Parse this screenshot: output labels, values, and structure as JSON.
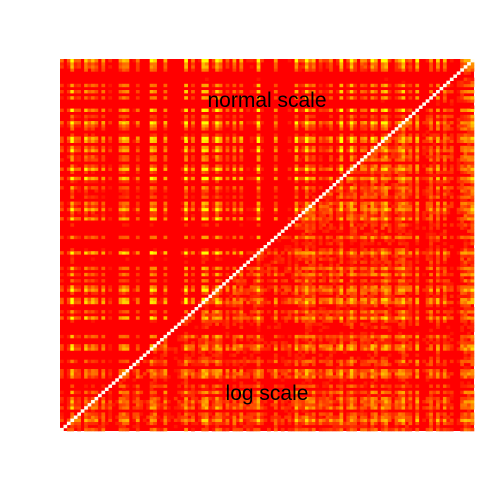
{
  "chart_data": {
    "type": "heatmap",
    "title": "",
    "xlabel": "",
    "ylabel": "",
    "annotations": {
      "upper_triangle": "normal scale",
      "lower_triangle": "log scale"
    },
    "matrix_size": 120,
    "diagonal_value": 1.0,
    "color_scale": {
      "low": "#ff0000",
      "mid": "#ffa500",
      "high": "#ffff00",
      "diagonal": "#fffff0"
    },
    "legend": "none",
    "grid": false
  }
}
